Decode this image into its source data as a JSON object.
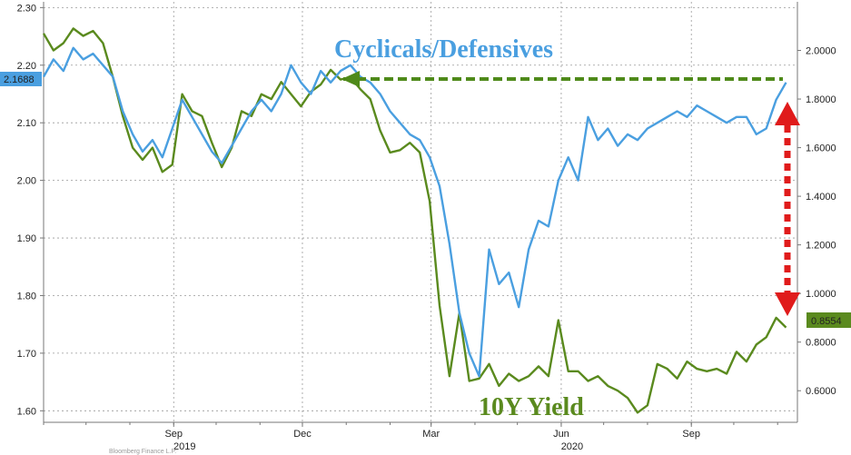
{
  "chart_data": {
    "type": "line",
    "title": "",
    "xlabel": "",
    "ylabel": "",
    "grid": true,
    "x_tick_labels": [
      {
        "label": "Sep",
        "year": "2019",
        "date": "2019-09-01"
      },
      {
        "label": "Dec",
        "date": "2019-12-01"
      },
      {
        "label": "Mar",
        "date": "2020-03-01"
      },
      {
        "label": "Jun",
        "year": "2020",
        "date": "2020-06-01"
      },
      {
        "label": "Sep",
        "date": "2020-09-01"
      }
    ],
    "xlim": [
      "2019-06-01",
      "2020-11-15"
    ],
    "y_left": {
      "ticks": [
        "2.30",
        "2.20",
        "2.10",
        "2.00",
        "1.90",
        "1.80",
        "1.70",
        "1.60"
      ],
      "ylim": [
        1.58,
        2.31
      ]
    },
    "y_right": {
      "ticks": [
        "2.0000",
        "1.8000",
        "1.6000",
        "1.4000",
        "1.2000",
        "1.0000",
        "0.8000",
        "0.6000"
      ],
      "ylim": [
        0.47,
        2.2
      ]
    },
    "series": [
      {
        "name": "Cyclicals/Defensives",
        "axis": "left",
        "color": "#4a9fe0",
        "last_value_label": "2.1688",
        "x": [
          "2019-06-01",
          "2019-06-08",
          "2019-06-15",
          "2019-06-22",
          "2019-06-29",
          "2019-07-06",
          "2019-07-13",
          "2019-07-20",
          "2019-07-27",
          "2019-08-03",
          "2019-08-10",
          "2019-08-17",
          "2019-08-24",
          "2019-08-31",
          "2019-09-07",
          "2019-09-14",
          "2019-09-21",
          "2019-09-28",
          "2019-10-05",
          "2019-10-12",
          "2019-10-19",
          "2019-10-26",
          "2019-11-02",
          "2019-11-09",
          "2019-11-16",
          "2019-11-23",
          "2019-11-30",
          "2019-12-07",
          "2019-12-14",
          "2019-12-21",
          "2019-12-28",
          "2020-01-04",
          "2020-01-11",
          "2020-01-18",
          "2020-01-25",
          "2020-02-01",
          "2020-02-08",
          "2020-02-15",
          "2020-02-22",
          "2020-02-29",
          "2020-03-07",
          "2020-03-14",
          "2020-03-21",
          "2020-03-28",
          "2020-04-04",
          "2020-04-11",
          "2020-04-18",
          "2020-04-25",
          "2020-05-02",
          "2020-05-09",
          "2020-05-16",
          "2020-05-23",
          "2020-05-30",
          "2020-06-06",
          "2020-06-13",
          "2020-06-20",
          "2020-06-27",
          "2020-07-04",
          "2020-07-11",
          "2020-07-18",
          "2020-07-25",
          "2020-08-01",
          "2020-08-08",
          "2020-08-15",
          "2020-08-22",
          "2020-08-29",
          "2020-09-05",
          "2020-09-12",
          "2020-09-19",
          "2020-09-26",
          "2020-10-03",
          "2020-10-10",
          "2020-10-17",
          "2020-10-24",
          "2020-10-31",
          "2020-11-07"
        ],
        "y": [
          2.18,
          2.21,
          2.19,
          2.23,
          2.21,
          2.22,
          2.2,
          2.18,
          2.12,
          2.08,
          2.05,
          2.07,
          2.04,
          2.09,
          2.14,
          2.11,
          2.08,
          2.05,
          2.03,
          2.06,
          2.09,
          2.12,
          2.14,
          2.12,
          2.15,
          2.2,
          2.17,
          2.15,
          2.19,
          2.17,
          2.19,
          2.2,
          2.18,
          2.17,
          2.15,
          2.12,
          2.1,
          2.08,
          2.07,
          2.04,
          1.99,
          1.89,
          1.77,
          1.7,
          1.66,
          1.88,
          1.82,
          1.84,
          1.78,
          1.88,
          1.93,
          1.92,
          2.0,
          2.04,
          2.0,
          2.11,
          2.07,
          2.09,
          2.06,
          2.08,
          2.07,
          2.09,
          2.1,
          2.11,
          2.12,
          2.11,
          2.13,
          2.12,
          2.11,
          2.1,
          2.11,
          2.11,
          2.08,
          2.09,
          2.14,
          2.17
        ]
      },
      {
        "name": "10Y Yield",
        "axis": "right",
        "color": "#5a8a1e",
        "last_value_label": "0.8554",
        "x": [
          "2019-06-01",
          "2019-06-08",
          "2019-06-15",
          "2019-06-22",
          "2019-06-29",
          "2019-07-06",
          "2019-07-13",
          "2019-07-20",
          "2019-07-27",
          "2019-08-03",
          "2019-08-10",
          "2019-08-17",
          "2019-08-24",
          "2019-08-31",
          "2019-09-07",
          "2019-09-14",
          "2019-09-21",
          "2019-09-28",
          "2019-10-05",
          "2019-10-12",
          "2019-10-19",
          "2019-10-26",
          "2019-11-02",
          "2019-11-09",
          "2019-11-16",
          "2019-11-23",
          "2019-11-30",
          "2019-12-07",
          "2019-12-14",
          "2019-12-21",
          "2019-12-28",
          "2020-01-04",
          "2020-01-11",
          "2020-01-18",
          "2020-01-25",
          "2020-02-01",
          "2020-02-08",
          "2020-02-15",
          "2020-02-22",
          "2020-02-29",
          "2020-03-07",
          "2020-03-14",
          "2020-03-21",
          "2020-03-28",
          "2020-04-04",
          "2020-04-11",
          "2020-04-18",
          "2020-04-25",
          "2020-05-02",
          "2020-05-09",
          "2020-05-16",
          "2020-05-23",
          "2020-05-30",
          "2020-06-06",
          "2020-06-13",
          "2020-06-20",
          "2020-06-27",
          "2020-07-04",
          "2020-07-11",
          "2020-07-18",
          "2020-07-25",
          "2020-08-01",
          "2020-08-08",
          "2020-08-15",
          "2020-08-22",
          "2020-08-29",
          "2020-09-05",
          "2020-09-12",
          "2020-09-19",
          "2020-09-26",
          "2020-10-03",
          "2020-10-10",
          "2020-10-17",
          "2020-10-24",
          "2020-10-31",
          "2020-11-07"
        ],
        "y": [
          2.07,
          2.0,
          2.03,
          2.09,
          2.06,
          2.08,
          2.03,
          1.89,
          1.73,
          1.6,
          1.55,
          1.6,
          1.5,
          1.53,
          1.82,
          1.75,
          1.73,
          1.62,
          1.52,
          1.6,
          1.75,
          1.73,
          1.82,
          1.8,
          1.87,
          1.82,
          1.77,
          1.83,
          1.86,
          1.92,
          1.88,
          1.89,
          1.84,
          1.8,
          1.67,
          1.58,
          1.59,
          1.62,
          1.58,
          1.38,
          0.95,
          0.66,
          0.92,
          0.64,
          0.65,
          0.71,
          0.62,
          0.67,
          0.64,
          0.66,
          0.7,
          0.66,
          0.89,
          0.68,
          0.68,
          0.64,
          0.66,
          0.62,
          0.6,
          0.57,
          0.51,
          0.54,
          0.71,
          0.69,
          0.65,
          0.72,
          0.69,
          0.68,
          0.69,
          0.67,
          0.76,
          0.72,
          0.79,
          0.82,
          0.9,
          0.86
        ]
      }
    ],
    "annotations": [
      {
        "text": "Cyclicals/Defensives",
        "color": "#4a9fe0"
      },
      {
        "text": "10Y Yield",
        "color": "#5a8a1e"
      }
    ],
    "arrows": {
      "dashed_green": "#4f8a1a",
      "dotted_red": "#e01b1b"
    },
    "footer_text": "Bloomberg Finance L.P."
  }
}
